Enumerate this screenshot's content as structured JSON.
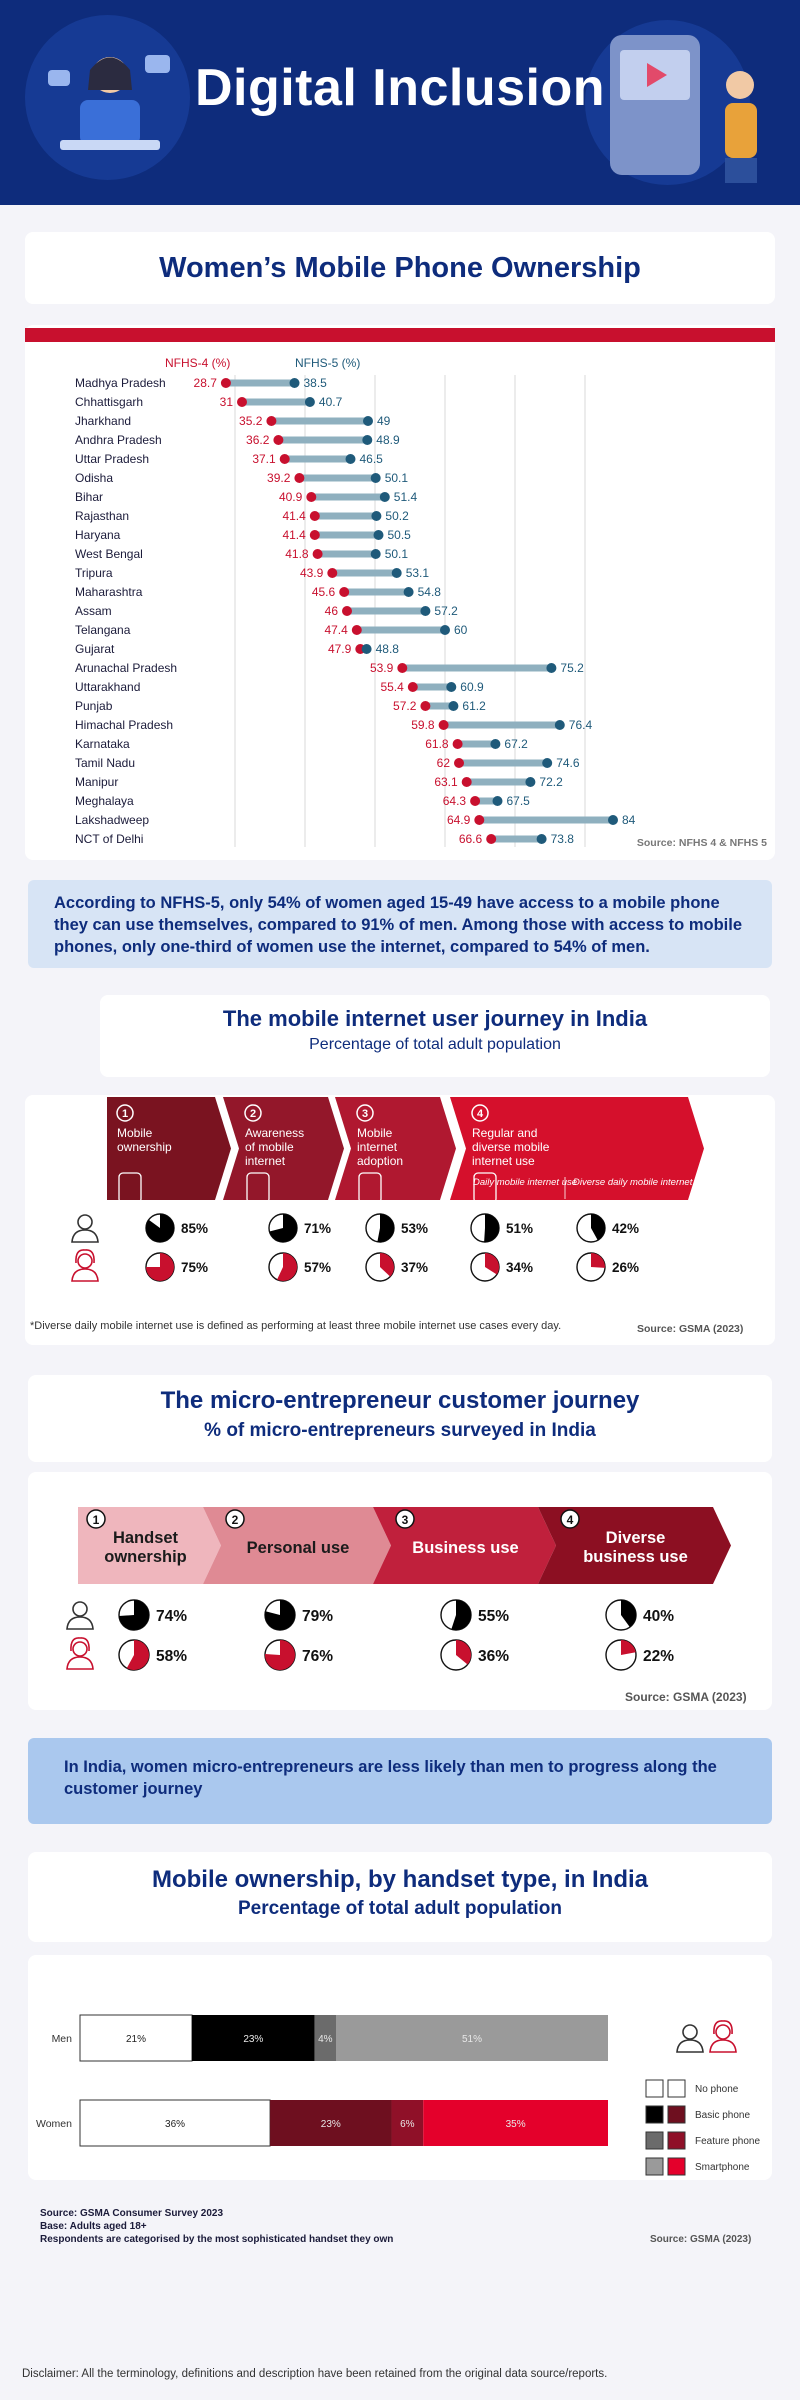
{
  "header": {
    "title": "Digital Inclusion"
  },
  "ownership": {
    "title": "Women’s Mobile Phone Ownership",
    "legend": {
      "nfhs4": "NFHS-4 (%)",
      "nfhs5": "NFHS-5 (%)"
    },
    "source": "Source: NFHS 4 & NFHS 5",
    "colors": {
      "nfhs4": "#c8102e",
      "nfhs5": "#1f5a7a",
      "bar": "#8fb0bf",
      "accent": "#c8102e"
    }
  },
  "chart_data": [
    {
      "type": "dumbbell",
      "title": "Women’s Mobile Phone Ownership",
      "categories": [
        "Madhya Pradesh",
        "Chhattisgarh",
        "Jharkhand",
        "Andhra Pradesh",
        "Uttar Pradesh",
        "Odisha",
        "Bihar",
        "Rajasthan",
        "Haryana",
        "West Bengal",
        "Tripura",
        "Maharashtra",
        "Assam",
        "Telangana",
        "Gujarat",
        "Arunachal Pradesh",
        "Uttarakhand",
        "Punjab",
        "Himachal Pradesh",
        "Karnataka",
        "Tamil Nadu",
        "Manipur",
        "Meghalaya",
        "Lakshadweep",
        "NCT of Delhi"
      ],
      "series": [
        {
          "name": "NFHS-4 (%)",
          "values": [
            28.7,
            31,
            35.2,
            36.2,
            37.1,
            39.2,
            40.9,
            41.4,
            41.4,
            41.8,
            43.9,
            45.6,
            46,
            47.4,
            47.9,
            53.9,
            55.4,
            57.2,
            59.8,
            61.8,
            62,
            63.1,
            64.3,
            64.9,
            66.6
          ]
        },
        {
          "name": "NFHS-5 (%)",
          "values": [
            38.5,
            40.7,
            49,
            48.9,
            46.5,
            50.1,
            51.4,
            50.2,
            50.5,
            50.1,
            53.1,
            54.8,
            57.2,
            60,
            48.8,
            75.2,
            60.9,
            61.2,
            76.4,
            67.2,
            74.6,
            72.2,
            67.5,
            84,
            73.8
          ]
        }
      ],
      "xlim": [
        20,
        90
      ],
      "grid": true,
      "legend_position": "top-left"
    },
    {
      "type": "bar",
      "title": "Mobile ownership, by handset type, in India",
      "subtitle": "Percentage of total adult population",
      "categories": [
        "Men",
        "Women"
      ],
      "series": [
        {
          "name": "No phone",
          "values": [
            21,
            36
          ]
        },
        {
          "name": "Basic phone",
          "values": [
            23,
            23
          ]
        },
        {
          "name": "Feature phone",
          "values": [
            4,
            6
          ]
        },
        {
          "name": "Smartphone",
          "values": [
            51,
            35
          ]
        }
      ],
      "stacked": true,
      "orientation": "horizontal"
    }
  ],
  "ownership_note": "According to NFHS-5, only 54% of women aged 15-49 have access to a mobile phone they can use themselves, compared to 91% of men. Among those with access to mobile phones, only one-third of women use the internet, compared to 54% of men.",
  "journey": {
    "title": "The mobile internet user journey in India",
    "subtitle": "Percentage of total adult population",
    "steps": [
      {
        "num": "1",
        "lines": [
          "Mobile",
          "ownership"
        ],
        "men": 85,
        "women": 75,
        "men_label": "85%",
        "women_label": "75%"
      },
      {
        "num": "2",
        "lines": [
          "Awareness",
          "of mobile",
          "internet"
        ],
        "men": 71,
        "women": 57,
        "men_label": "71%",
        "women_label": "57%"
      },
      {
        "num": "3",
        "lines": [
          "Mobile",
          "internet",
          "adoption"
        ],
        "men": 53,
        "women": 37,
        "men_label": "53%",
        "women_label": "37%"
      },
      {
        "num": "4",
        "lines": [
          "Regular and",
          "diverse mobile",
          "internet use"
        ],
        "men": 51,
        "women": 34,
        "men_label": "51%",
        "women_label": "34%"
      },
      {
        "num": "",
        "lines": [],
        "men": 42,
        "women": 26,
        "men_label": "42%",
        "women_label": "26%"
      }
    ],
    "sub_labels": [
      "Daily mobile internet use",
      "Diverse daily mobile internet use*"
    ],
    "footnote": "*Diverse daily mobile internet use is defined as performing at least three mobile internet use cases every day.",
    "source": "Source: GSMA (2023)"
  },
  "micro": {
    "title": "The micro-entrepreneur customer journey",
    "subtitle": "% of micro-entrepreneurs surveyed in India",
    "steps": [
      {
        "num": "1",
        "lines": [
          "Handset",
          "ownership"
        ],
        "men": 74,
        "women": 58,
        "men_label": "74%",
        "women_label": "58%"
      },
      {
        "num": "2",
        "lines": [
          "Personal use"
        ],
        "men": 79,
        "women": 76,
        "men_label": "79%",
        "women_label": "76%"
      },
      {
        "num": "3",
        "lines": [
          "Business use"
        ],
        "men": 55,
        "women": 36,
        "men_label": "55%",
        "women_label": "36%"
      },
      {
        "num": "4",
        "lines": [
          "Diverse",
          "business use"
        ],
        "men": 40,
        "women": 22,
        "men_label": "40%",
        "women_label": "22%"
      }
    ],
    "source": "Source: GSMA (2023)"
  },
  "micro_note": "In India, women micro-entrepreneurs are less likely than men to progress along the customer journey",
  "handset": {
    "title": "Mobile ownership, by handset type, in India",
    "subtitle": "Percentage of total adult population",
    "rows": [
      {
        "label": "Men",
        "segments": [
          {
            "value": 21,
            "label": "21%"
          },
          {
            "value": 23,
            "label": "23%"
          },
          {
            "value": 4,
            "label": "4%"
          },
          {
            "value": 51,
            "label": "51%"
          }
        ]
      },
      {
        "label": "Women",
        "segments": [
          {
            "value": 36,
            "label": "36%"
          },
          {
            "value": 23,
            "label": "23%"
          },
          {
            "value": 6,
            "label": "6%"
          },
          {
            "value": 35,
            "label": "35%"
          }
        ]
      }
    ],
    "legend": [
      "No phone",
      "Basic phone",
      "Feature phone",
      "Smartphone"
    ],
    "men_colors": [
      "#ffffff",
      "#000000",
      "#6b6b6b",
      "#9a9a9a"
    ],
    "women_colors": [
      "#ffffff",
      "#6e0f1f",
      "#8f1028",
      "#e4002b"
    ],
    "notes": [
      "Source: GSMA Consumer Survey 2023",
      "Base: Adults aged 18+",
      "Respondents are categorised by the most sophisticated handset they own"
    ],
    "source": "Source: GSMA (2023)"
  },
  "disclaimer": "Disclaimer: All the terminology, definitions and description have been retained from the original data source/reports."
}
